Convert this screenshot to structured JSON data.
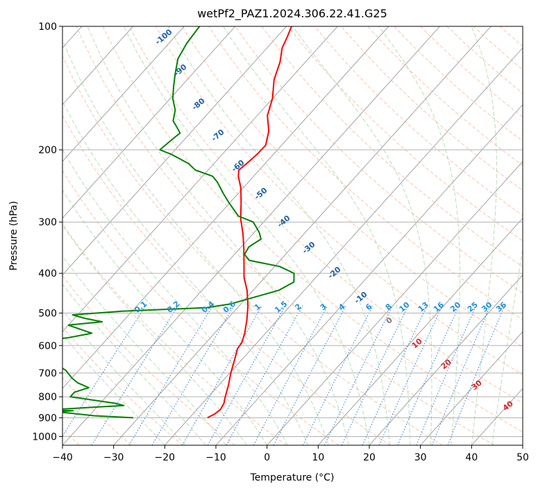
{
  "chart_data": {
    "type": "line",
    "title": "wetPf2_PAZ1.2024.306.22.41.G25",
    "xlabel": "Temperature (°C)",
    "ylabel": "Pressure (hPa)",
    "xlim": [
      -40,
      50
    ],
    "ylim": [
      1050,
      100
    ],
    "y_scale": "log",
    "x_ticks": [
      "−40",
      "−30",
      "−20",
      "−10",
      "0",
      "10",
      "20",
      "30",
      "40",
      "50"
    ],
    "y_ticks": [
      "100",
      "200",
      "300",
      "400",
      "500",
      "600",
      "700",
      "800",
      "900",
      "1000"
    ],
    "grid": true,
    "series": [
      {
        "role": "temperature",
        "color": "#ff0000",
        "values": [
          [
            -16.5,
            900
          ],
          [
            -15.7,
            880
          ],
          [
            -15.4,
            860
          ],
          [
            -15.8,
            830
          ],
          [
            -16.7,
            800
          ],
          [
            -18.1,
            750
          ],
          [
            -19.8,
            700
          ],
          [
            -21.4,
            650
          ],
          [
            -22.8,
            610
          ],
          [
            -23.0,
            590
          ],
          [
            -24.1,
            560
          ],
          [
            -26.0,
            520
          ],
          [
            -28.3,
            480
          ],
          [
            -31.2,
            440
          ],
          [
            -34.0,
            410
          ],
          [
            -36.4,
            380
          ],
          [
            -39.0,
            350
          ],
          [
            -42.0,
            320
          ],
          [
            -45.0,
            295
          ],
          [
            -47.7,
            270
          ],
          [
            -50.4,
            248
          ],
          [
            -53.0,
            232
          ],
          [
            -54.0,
            224
          ],
          [
            -53.6,
            216
          ],
          [
            -53.2,
            205
          ],
          [
            -53.1,
            195
          ],
          [
            -55.0,
            180
          ],
          [
            -58.0,
            165
          ],
          [
            -60.0,
            150
          ],
          [
            -63.0,
            135
          ],
          [
            -65.0,
            122
          ],
          [
            -67.0,
            113
          ],
          [
            -68.0,
            106
          ],
          [
            -69.0,
            100
          ]
        ]
      },
      {
        "role": "dewpoint",
        "color": "#008000",
        "values": [
          [
            -31.0,
            900
          ],
          [
            -39.0,
            890
          ],
          [
            -47.0,
            870
          ],
          [
            -44.0,
            865
          ],
          [
            -50.0,
            862
          ],
          [
            -45.0,
            855
          ],
          [
            -35.0,
            840
          ],
          [
            -37.0,
            830
          ],
          [
            -47.0,
            800
          ],
          [
            -47.0,
            780
          ],
          [
            -45.0,
            760
          ],
          [
            -48.0,
            740
          ],
          [
            -50.0,
            720
          ],
          [
            -52.5,
            690
          ],
          [
            -55.0,
            670
          ],
          [
            -58.5,
            650
          ],
          [
            -62.0,
            625
          ],
          [
            -64.5,
            620
          ],
          [
            -67.0,
            612
          ],
          [
            -77.0,
            608
          ],
          [
            -65.0,
            585
          ],
          [
            -58.0,
            575
          ],
          [
            -54.0,
            560
          ],
          [
            -60.0,
            535
          ],
          [
            -54.0,
            525
          ],
          [
            -58.0,
            515
          ],
          [
            -61.0,
            505
          ],
          [
            -52.0,
            495
          ],
          [
            -36.0,
            485
          ],
          [
            -32.0,
            475
          ],
          [
            -25.0,
            440
          ],
          [
            -23.5,
            420
          ],
          [
            -25.0,
            400
          ],
          [
            -29.0,
            385
          ],
          [
            -36.0,
            372
          ],
          [
            -38.0,
            360
          ],
          [
            -38.5,
            345
          ],
          [
            -37.5,
            330
          ],
          [
            -39.0,
            318
          ],
          [
            -42.0,
            300
          ],
          [
            -46.0,
            290
          ],
          [
            -50.0,
            270
          ],
          [
            -53.0,
            255
          ],
          [
            -56.0,
            240
          ],
          [
            -58.0,
            232
          ],
          [
            -62.5,
            224
          ],
          [
            -65.0,
            216
          ],
          [
            -70.0,
            205
          ],
          [
            -73.0,
            200
          ],
          [
            -72.5,
            190
          ],
          [
            -72.0,
            182
          ],
          [
            -74.0,
            175
          ],
          [
            -75.5,
            170
          ],
          [
            -77.0,
            160
          ],
          [
            -79.5,
            150
          ],
          [
            -81.5,
            140
          ],
          [
            -83.5,
            130
          ],
          [
            -85.5,
            120
          ],
          [
            -86.5,
            110
          ],
          [
            -87.0,
            100
          ]
        ]
      }
    ],
    "dry_adiabat_labels": [
      "-100",
      "-90",
      "-80",
      "-70",
      "-60",
      "-50",
      "-40",
      "-30",
      "-20",
      "-10"
    ],
    "mixing_ratio_labels": [
      "0.1",
      "0.2",
      "0.4",
      "0.6",
      "1",
      "1.5",
      "2",
      "3",
      "4",
      "6",
      "8",
      "10",
      "13",
      "16",
      "20",
      "25",
      "30",
      "36"
    ],
    "moist_adiabat_labels": [
      "0",
      "10",
      "20",
      "30",
      "40"
    ]
  }
}
